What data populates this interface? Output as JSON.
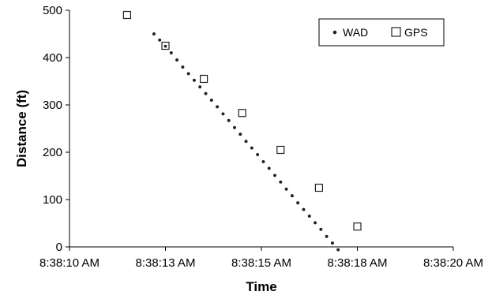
{
  "chart_data": {
    "type": "scatter",
    "xlabel": "Time",
    "ylabel": "Distance (ft)",
    "xlim": [
      "8:38:10 AM",
      "8:38:20 AM"
    ],
    "ylim": [
      0,
      500
    ],
    "x_ticks": [
      "8:38:10 AM",
      "8:38:13 AM",
      "8:38:15 AM",
      "8:38:18 AM",
      "8:38:20 AM"
    ],
    "y_ticks": [
      0,
      100,
      200,
      300,
      400,
      500
    ],
    "grid": false,
    "legend_position": "top-right",
    "series": [
      {
        "name": "WAD",
        "marker": "dot",
        "color": "#222222",
        "x": [
          "8:38:12.2",
          "8:38:12.35",
          "8:38:12.5",
          "8:38:12.65",
          "8:38:12.8",
          "8:38:12.95",
          "8:38:13.1",
          "8:38:13.25",
          "8:38:13.4",
          "8:38:13.55",
          "8:38:13.7",
          "8:38:13.85",
          "8:38:14.0",
          "8:38:14.15",
          "8:38:14.3",
          "8:38:14.45",
          "8:38:14.6",
          "8:38:14.75",
          "8:38:14.9",
          "8:38:15.05",
          "8:38:15.2",
          "8:38:15.35",
          "8:38:15.5",
          "8:38:15.65",
          "8:38:15.8",
          "8:38:15.95",
          "8:38:16.1",
          "8:38:16.25",
          "8:38:16.4",
          "8:38:16.55",
          "8:38:16.7",
          "8:38:16.85",
          "8:38:17.0"
        ],
        "y": [
          450,
          437,
          424,
          410,
          395,
          380,
          366,
          352,
          338,
          324,
          310,
          296,
          281,
          267,
          252,
          238,
          223,
          209,
          195,
          180,
          166,
          151,
          137,
          122,
          108,
          93,
          79,
          65,
          51,
          37,
          22,
          8,
          -6
        ]
      },
      {
        "name": "GPS",
        "marker": "open-square",
        "color": "#222222",
        "x": [
          "8:38:11.5",
          "8:38:12.5",
          "8:38:13.5",
          "8:38:14.5",
          "8:38:15.5",
          "8:38:16.5",
          "8:38:17.5"
        ],
        "y": [
          490,
          425,
          355,
          283,
          205,
          125,
          43
        ]
      }
    ]
  }
}
